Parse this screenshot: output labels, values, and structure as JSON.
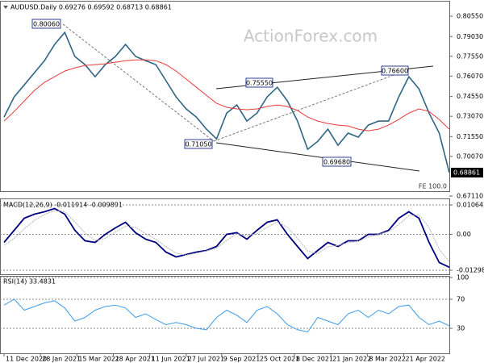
{
  "chart_data": [
    {
      "type": "line",
      "title": "AUDUSD.Daily  0.69276 0.69592 0.68713 0.68861",
      "watermark": "ActionForex.com",
      "annotations": [
        "0.80060",
        "0.75550",
        "0.76600",
        "0.71050",
        "0.69680",
        "FE 100.0"
      ],
      "current_price": {
        "value": 0.68861,
        "label": "0.68861"
      },
      "xlim": [
        -0.4,
        44
      ],
      "xticks": [
        {
          "value": 0,
          "label": "11 Dec 2020"
        },
        {
          "value": 3.6,
          "label": "28 Jan 2021"
        },
        {
          "value": 7.2,
          "label": "15 Mar 2021"
        },
        {
          "value": 10.8,
          "label": "28 Apr 2021"
        },
        {
          "value": 14.4,
          "label": "11 Jun 2021"
        },
        {
          "value": 18,
          "label": "27 Jul 2021"
        },
        {
          "value": 21.5,
          "label": "9 Sep 2021"
        },
        {
          "value": 25.1,
          "label": "25 Oct 2021"
        },
        {
          "value": 28.7,
          "label": "8 Dec 2021"
        },
        {
          "value": 32.3,
          "label": "21 Jan 2022"
        },
        {
          "value": 35.9,
          "label": "8 Mar 2022"
        },
        {
          "value": 39.5,
          "label": "21 Apr 2022"
        }
      ],
      "ylim": [
        0.6711,
        0.8146
      ],
      "yticks": [
        {
          "value": 0.8055,
          "label": "0.80550"
        },
        {
          "value": 0.7903,
          "label": "0.79030"
        },
        {
          "value": 0.7755,
          "label": "0.77550"
        },
        {
          "value": 0.7607,
          "label": "0.76070"
        },
        {
          "value": 0.7455,
          "label": "0.74550"
        },
        {
          "value": 0.7307,
          "label": "0.73070"
        },
        {
          "value": 0.7155,
          "label": "0.71550"
        },
        {
          "value": 0.7007,
          "label": "0.70070"
        },
        {
          "value": 0.6711,
          "label": "0.67110"
        }
      ],
      "series": [
        {
          "color": "#2f6684",
          "values": [
            0.7301,
            0.7452,
            0.7542,
            0.7633,
            0.7723,
            0.7844,
            0.7934,
            0.7754,
            0.7693,
            0.7603,
            0.7693,
            0.7754,
            0.7844,
            0.7754,
            0.7723,
            0.7693,
            0.7573,
            0.7452,
            0.7362,
            0.7301,
            0.7211,
            0.7138,
            0.7331,
            0.7392,
            0.7271,
            0.7331,
            0.7452,
            0.7524,
            0.7422,
            0.7271,
            0.706,
            0.712,
            0.7211,
            0.709,
            0.7181,
            0.7151,
            0.7241,
            0.7271,
            0.7271,
            0.7452,
            0.7603,
            0.7512,
            0.7331,
            0.7181,
            0.68861
          ]
        },
        {
          "color": "#e8393a",
          "values": [
            0.7271,
            0.7343,
            0.7422,
            0.75,
            0.7561,
            0.7603,
            0.7645,
            0.7669,
            0.7687,
            0.7693,
            0.7699,
            0.7711,
            0.7723,
            0.7729,
            0.7729,
            0.7723,
            0.7693,
            0.7645,
            0.7585,
            0.7524,
            0.7464,
            0.7404,
            0.7374,
            0.7362,
            0.7356,
            0.7362,
            0.738,
            0.7392,
            0.738,
            0.735,
            0.7301,
            0.7271,
            0.7253,
            0.7241,
            0.7235,
            0.7211,
            0.7199,
            0.7211,
            0.7241,
            0.7283,
            0.7331,
            0.7362,
            0.7343,
            0.7283,
            0.7211
          ]
        }
      ]
    },
    {
      "type": "line",
      "title": "MACD(12,26,9) -0.011914 -0.009891",
      "xlim": [
        -0.4,
        44
      ],
      "ylim": [
        -0.01445,
        0.01268
      ],
      "yticks": [
        0.010642,
        {
          "value": 0,
          "label": "0.00"
        },
        -0.012988
      ],
      "series": [
        {
          "color": "#000080",
          "values": [
            -0.00292,
            0.00146,
            0.00583,
            0.00729,
            0.00817,
            0.00933,
            0.00729,
            0.00146,
            -0.00233,
            -0.00292,
            0,
            0.00233,
            0.00438,
            0.00058,
            -0.00175,
            -0.00292,
            -0.00642,
            -0.00817,
            -0.00729,
            -0.00642,
            -0.00583,
            -0.00438,
            0,
            0.00058,
            -0.00175,
            0.00146,
            0.00438,
            0.00525,
            0,
            -0.00438,
            -0.00875,
            -0.00583,
            -0.00292,
            -0.00438,
            -0.00233,
            -0.00233,
            0,
            0,
            0.00146,
            0.00583,
            0.00817,
            0.00583,
            -0.00292,
            -0.01021,
            -0.011914
          ]
        },
        {
          "color": "#b8b8b8",
          "values": [
            -0.004,
            -0.0015,
            0.002,
            0.005,
            0.0072,
            0.0085,
            0.0082,
            0.0045,
            0.0005,
            -0.0022,
            -0.0015,
            0.0008,
            0.003,
            0.0025,
            0.0002,
            -0.0018,
            -0.0045,
            -0.0068,
            -0.0075,
            -0.0068,
            -0.006,
            -0.005,
            -0.0022,
            0.0002,
            -0.0005,
            0.0002,
            0.0025,
            0.0045,
            0.0025,
            -0.0015,
            -0.006,
            -0.007,
            -0.0045,
            -0.004,
            -0.003,
            -0.0025,
            -0.001,
            0,
            0.001,
            0.0035,
            0.0068,
            0.007,
            0.0025,
            -0.0055,
            -0.009891
          ]
        }
      ]
    },
    {
      "type": "line",
      "title": "RSI(14) 33.4831",
      "xlim": [
        -0.4,
        44
      ],
      "ylim": [
        -4.4,
        101.1
      ],
      "yticks": [
        100,
        70,
        30
      ],
      "series": [
        {
          "color": "#3d9be9",
          "values": [
            62,
            70,
            55,
            60,
            65,
            68,
            58,
            40,
            45,
            55,
            60,
            62,
            58,
            45,
            50,
            42,
            35,
            38,
            35,
            30,
            28,
            45,
            55,
            48,
            38,
            55,
            60,
            50,
            35,
            28,
            25,
            45,
            40,
            35,
            50,
            55,
            45,
            55,
            50,
            60,
            62,
            45,
            35,
            40,
            33.4831
          ]
        }
      ]
    }
  ]
}
